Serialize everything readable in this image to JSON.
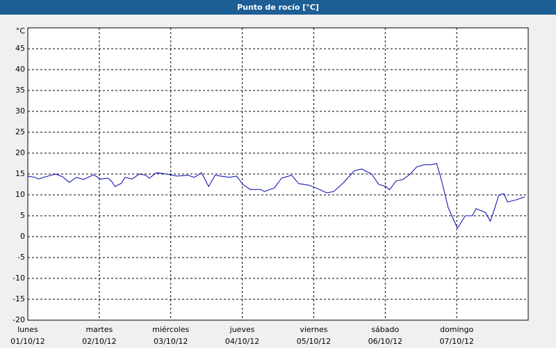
{
  "chart_data": {
    "type": "line",
    "title": "Punto de rocío [°C]",
    "ylabel": "°C",
    "x": [
      0,
      0.1,
      0.15,
      0.24,
      0.39,
      0.49,
      0.58,
      0.68,
      0.78,
      0.92,
      1.02,
      1.12,
      1.17,
      1.22,
      1.31,
      1.36,
      1.46,
      1.56,
      1.65,
      1.7,
      1.8,
      1.94,
      2.09,
      2.24,
      2.33,
      2.43,
      2.53,
      2.62,
      2.82,
      2.92,
      3.01,
      3.11,
      3.26,
      3.31,
      3.45,
      3.55,
      3.69,
      3.79,
      3.94,
      4.08,
      4.18,
      4.28,
      4.42,
      4.57,
      4.67,
      4.81,
      4.91,
      5.01,
      5.06,
      5.15,
      5.25,
      5.35,
      5.44,
      5.54,
      5.64,
      5.72,
      5.79,
      5.88,
      6.01,
      6.12,
      6.22,
      6.27,
      6.4,
      6.47,
      6.53,
      6.59,
      6.66,
      6.71,
      6.81,
      6.95
    ],
    "series": [
      {
        "name": "Punto de rocío",
        "color": "#0000aa",
        "values": [
          14.5,
          14.2,
          13.8,
          14.3,
          15,
          14.3,
          13,
          14.2,
          13.7,
          14.8,
          13.8,
          14,
          13.3,
          12,
          12.8,
          14.2,
          13.8,
          15,
          14.7,
          14,
          15.3,
          15,
          14.5,
          14.7,
          14.2,
          15.3,
          12,
          14.7,
          14.2,
          14.5,
          12.5,
          11.3,
          11.3,
          10.8,
          11.7,
          14,
          14.7,
          12.7,
          12.3,
          11.3,
          10.5,
          10.8,
          13,
          15.8,
          16.2,
          15,
          12.5,
          12,
          11.2,
          13.3,
          13.7,
          15,
          16.7,
          17.2,
          17.2,
          17.5,
          13.3,
          7,
          2,
          5,
          5,
          6.7,
          5.8,
          3.7,
          6.7,
          10,
          10.3,
          8.3,
          8.7,
          9.5
        ]
      }
    ],
    "xlim": [
      0,
      7
    ],
    "xticks": [
      {
        "value": 0,
        "label": "lunes",
        "date": "01/10/12"
      },
      {
        "value": 1,
        "label": "martes",
        "date": "02/10/12"
      },
      {
        "value": 2,
        "label": "miércoles",
        "date": "03/10/12"
      },
      {
        "value": 3,
        "label": "jueves",
        "date": "04/10/12"
      },
      {
        "value": 4,
        "label": "viernes",
        "date": "05/10/12"
      },
      {
        "value": 5,
        "label": "sábado",
        "date": "06/10/12"
      },
      {
        "value": 6,
        "label": "domingo",
        "date": "07/10/12"
      }
    ],
    "ylim": [
      -20,
      50
    ],
    "yticks": [
      -20,
      -15,
      -10,
      -5,
      0,
      5,
      10,
      15,
      20,
      25,
      30,
      35,
      40,
      45
    ],
    "grid": true
  }
}
